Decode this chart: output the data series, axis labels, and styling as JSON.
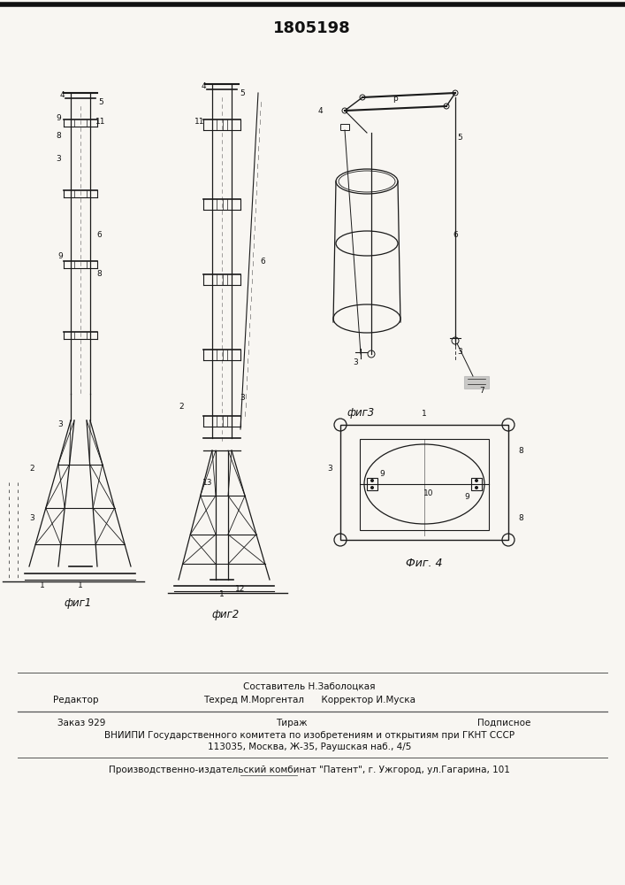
{
  "patent_number": "1805198",
  "paper_color": "#f8f6f2",
  "drawing_color": "#1a1a1a",
  "text_color": "#111111",
  "footer_text_1": "Составитель Н.Заболоцкая",
  "footer_text_2": "Техред М.Моргентал      Корректор И.Муска",
  "footer_left": "Редактор",
  "footer_order": "Заказ 929",
  "footer_tirazh": "Тираж",
  "footer_podp": "Подписное",
  "footer_org": "ВНИИПИ Государственного комитета по изобретениям и открытиям при ГКНТ СССР",
  "footer_addr": "113035, Москва, Ж-35, Раушская наб., 4/5",
  "footer_plant": "Производственно-издательский комбинат \"Патент\", г. Ужгород, ул.Гагарина, 101",
  "fig1_label": "фиг1",
  "fig2_label": "фиг2",
  "fig3_label": "фиг3",
  "fig4_label": "Фиг. 4"
}
